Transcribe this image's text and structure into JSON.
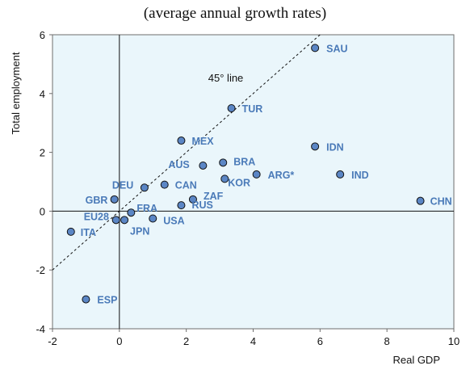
{
  "chart_data": {
    "type": "scatter",
    "title": "(average annual growth rates)",
    "xlabel": "Real GDP",
    "ylabel": "Total employment",
    "xlim": [
      -2,
      10
    ],
    "ylim": [
      -4,
      6
    ],
    "xticks": [
      "-2",
      "0",
      "2",
      "4",
      "6",
      "8",
      "10"
    ],
    "yticks": [
      "6",
      "4",
      "2",
      "0",
      "-2",
      "-4"
    ],
    "grid": false,
    "reference_line": {
      "label": "45° line",
      "slope": 1,
      "intercept": 0
    },
    "points": [
      {
        "label": "SAU",
        "x": 5.85,
        "y": 5.55
      },
      {
        "label": "TUR",
        "x": 3.35,
        "y": 3.5
      },
      {
        "label": "MEX",
        "x": 1.85,
        "y": 2.4
      },
      {
        "label": "IDN",
        "x": 5.85,
        "y": 2.2
      },
      {
        "label": "BRA",
        "x": 3.1,
        "y": 1.65
      },
      {
        "label": "AUS",
        "x": 2.5,
        "y": 1.55
      },
      {
        "label": "ARG*",
        "x": 4.1,
        "y": 1.25
      },
      {
        "label": "IND",
        "x": 6.6,
        "y": 1.25
      },
      {
        "label": "KOR",
        "x": 3.15,
        "y": 1.1
      },
      {
        "label": "CAN",
        "x": 1.35,
        "y": 0.9
      },
      {
        "label": "DEU",
        "x": 0.75,
        "y": 0.8
      },
      {
        "label": "ZAF",
        "x": 2.2,
        "y": 0.4
      },
      {
        "label": "GBR",
        "x": -0.15,
        "y": 0.4
      },
      {
        "label": "CHN",
        "x": 9.0,
        "y": 0.35
      },
      {
        "label": "RUS",
        "x": 1.85,
        "y": 0.2
      },
      {
        "label": "FRA",
        "x": 0.35,
        "y": -0.05
      },
      {
        "label": "EU28",
        "x": -0.1,
        "y": -0.3
      },
      {
        "label": "USA",
        "x": 1.0,
        "y": -0.25
      },
      {
        "label": "JPN",
        "x": 0.15,
        "y": -0.3
      },
      {
        "label": "ITA",
        "x": -1.45,
        "y": -0.7
      },
      {
        "label": "ESP",
        "x": -1.0,
        "y": -3.0
      }
    ]
  }
}
